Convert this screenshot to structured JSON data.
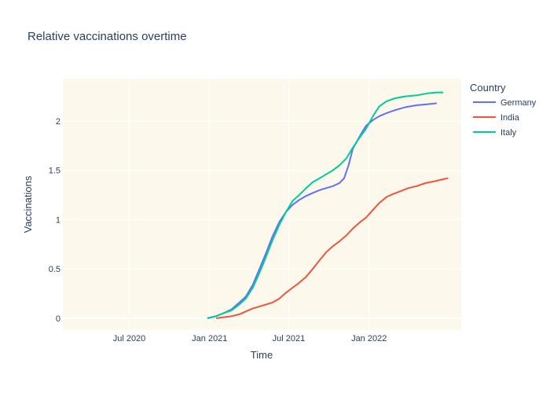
{
  "chart_data": {
    "type": "line",
    "title": "Relative vaccinations overtime",
    "xlabel": "Time",
    "ylabel": "Vaccinations",
    "x_range": [
      "2020-01-31",
      "2022-07-31"
    ],
    "ylim": [
      -0.12,
      2.43
    ],
    "x_ticks": [
      {
        "date": "2020-07-01",
        "label": "Jul 2020"
      },
      {
        "date": "2021-01-01",
        "label": "Jan 2021"
      },
      {
        "date": "2021-07-01",
        "label": "Jul 2021"
      },
      {
        "date": "2022-01-01",
        "label": "Jan 2022"
      }
    ],
    "y_ticks": [
      {
        "value": 0,
        "label": "0"
      },
      {
        "value": 0.5,
        "label": "0.5"
      },
      {
        "value": 1,
        "label": "1"
      },
      {
        "value": 1.5,
        "label": "1.5"
      },
      {
        "value": 2,
        "label": "2"
      }
    ],
    "grid": true,
    "plot_background": "#fcf8ec",
    "legend": {
      "title": "Country",
      "placement": "right"
    },
    "series": [
      {
        "name": "Germany",
        "color": "#636efa",
        "points": [
          [
            "2020-12-27",
            0.0
          ],
          [
            "2021-01-15",
            0.02
          ],
          [
            "2021-02-01",
            0.05
          ],
          [
            "2021-02-20",
            0.09
          ],
          [
            "2021-03-10",
            0.16
          ],
          [
            "2021-03-25",
            0.22
          ],
          [
            "2021-04-10",
            0.34
          ],
          [
            "2021-04-25",
            0.5
          ],
          [
            "2021-05-10",
            0.66
          ],
          [
            "2021-05-25",
            0.83
          ],
          [
            "2021-06-10",
            0.98
          ],
          [
            "2021-06-25",
            1.08
          ],
          [
            "2021-07-10",
            1.15
          ],
          [
            "2021-07-25",
            1.2
          ],
          [
            "2021-08-10",
            1.24
          ],
          [
            "2021-08-25",
            1.27
          ],
          [
            "2021-09-10",
            1.3
          ],
          [
            "2021-09-25",
            1.32
          ],
          [
            "2021-10-10",
            1.34
          ],
          [
            "2021-10-25",
            1.37
          ],
          [
            "2021-11-05",
            1.42
          ],
          [
            "2021-11-15",
            1.55
          ],
          [
            "2021-11-25",
            1.72
          ],
          [
            "2021-12-05",
            1.8
          ],
          [
            "2021-12-15",
            1.88
          ],
          [
            "2021-12-25",
            1.95
          ],
          [
            "2022-01-10",
            2.01
          ],
          [
            "2022-01-25",
            2.05
          ],
          [
            "2022-02-10",
            2.08
          ],
          [
            "2022-03-01",
            2.11
          ],
          [
            "2022-03-25",
            2.14
          ],
          [
            "2022-04-20",
            2.16
          ],
          [
            "2022-05-15",
            2.17
          ],
          [
            "2022-06-05",
            2.18
          ]
        ]
      },
      {
        "name": "India",
        "color": "#ef553b",
        "points": [
          [
            "2021-01-16",
            0.0
          ],
          [
            "2021-02-01",
            0.01
          ],
          [
            "2021-02-20",
            0.02
          ],
          [
            "2021-03-10",
            0.04
          ],
          [
            "2021-03-25",
            0.07
          ],
          [
            "2021-04-10",
            0.1
          ],
          [
            "2021-04-25",
            0.12
          ],
          [
            "2021-05-10",
            0.14
          ],
          [
            "2021-05-25",
            0.16
          ],
          [
            "2021-06-10",
            0.2
          ],
          [
            "2021-06-25",
            0.26
          ],
          [
            "2021-07-10",
            0.31
          ],
          [
            "2021-07-25",
            0.36
          ],
          [
            "2021-08-10",
            0.42
          ],
          [
            "2021-08-25",
            0.5
          ],
          [
            "2021-09-10",
            0.59
          ],
          [
            "2021-09-25",
            0.67
          ],
          [
            "2021-10-10",
            0.73
          ],
          [
            "2021-10-25",
            0.78
          ],
          [
            "2021-11-10",
            0.84
          ],
          [
            "2021-11-25",
            0.91
          ],
          [
            "2021-12-10",
            0.97
          ],
          [
            "2021-12-25",
            1.02
          ],
          [
            "2022-01-10",
            1.1
          ],
          [
            "2022-01-25",
            1.17
          ],
          [
            "2022-02-10",
            1.23
          ],
          [
            "2022-02-25",
            1.26
          ],
          [
            "2022-03-15",
            1.29
          ],
          [
            "2022-04-01",
            1.32
          ],
          [
            "2022-04-20",
            1.34
          ],
          [
            "2022-05-10",
            1.37
          ],
          [
            "2022-06-01",
            1.39
          ],
          [
            "2022-06-20",
            1.41
          ],
          [
            "2022-07-01",
            1.42
          ]
        ]
      },
      {
        "name": "Italy",
        "color": "#00cc96",
        "points": [
          [
            "2020-12-27",
            0.0
          ],
          [
            "2021-01-15",
            0.02
          ],
          [
            "2021-02-01",
            0.05
          ],
          [
            "2021-02-20",
            0.08
          ],
          [
            "2021-03-10",
            0.14
          ],
          [
            "2021-03-25",
            0.2
          ],
          [
            "2021-04-10",
            0.31
          ],
          [
            "2021-04-25",
            0.46
          ],
          [
            "2021-05-10",
            0.62
          ],
          [
            "2021-05-25",
            0.79
          ],
          [
            "2021-06-10",
            0.95
          ],
          [
            "2021-06-25",
            1.08
          ],
          [
            "2021-07-10",
            1.19
          ],
          [
            "2021-07-25",
            1.25
          ],
          [
            "2021-08-10",
            1.32
          ],
          [
            "2021-08-25",
            1.38
          ],
          [
            "2021-09-10",
            1.42
          ],
          [
            "2021-09-25",
            1.46
          ],
          [
            "2021-10-10",
            1.5
          ],
          [
            "2021-10-25",
            1.55
          ],
          [
            "2021-11-10",
            1.62
          ],
          [
            "2021-11-25",
            1.73
          ],
          [
            "2021-12-10",
            1.83
          ],
          [
            "2021-12-25",
            1.92
          ],
          [
            "2022-01-10",
            2.05
          ],
          [
            "2022-01-25",
            2.15
          ],
          [
            "2022-02-10",
            2.2
          ],
          [
            "2022-03-01",
            2.23
          ],
          [
            "2022-03-25",
            2.25
          ],
          [
            "2022-04-20",
            2.26
          ],
          [
            "2022-05-15",
            2.28
          ],
          [
            "2022-06-05",
            2.29
          ],
          [
            "2022-06-20",
            2.29
          ]
        ]
      }
    ]
  }
}
